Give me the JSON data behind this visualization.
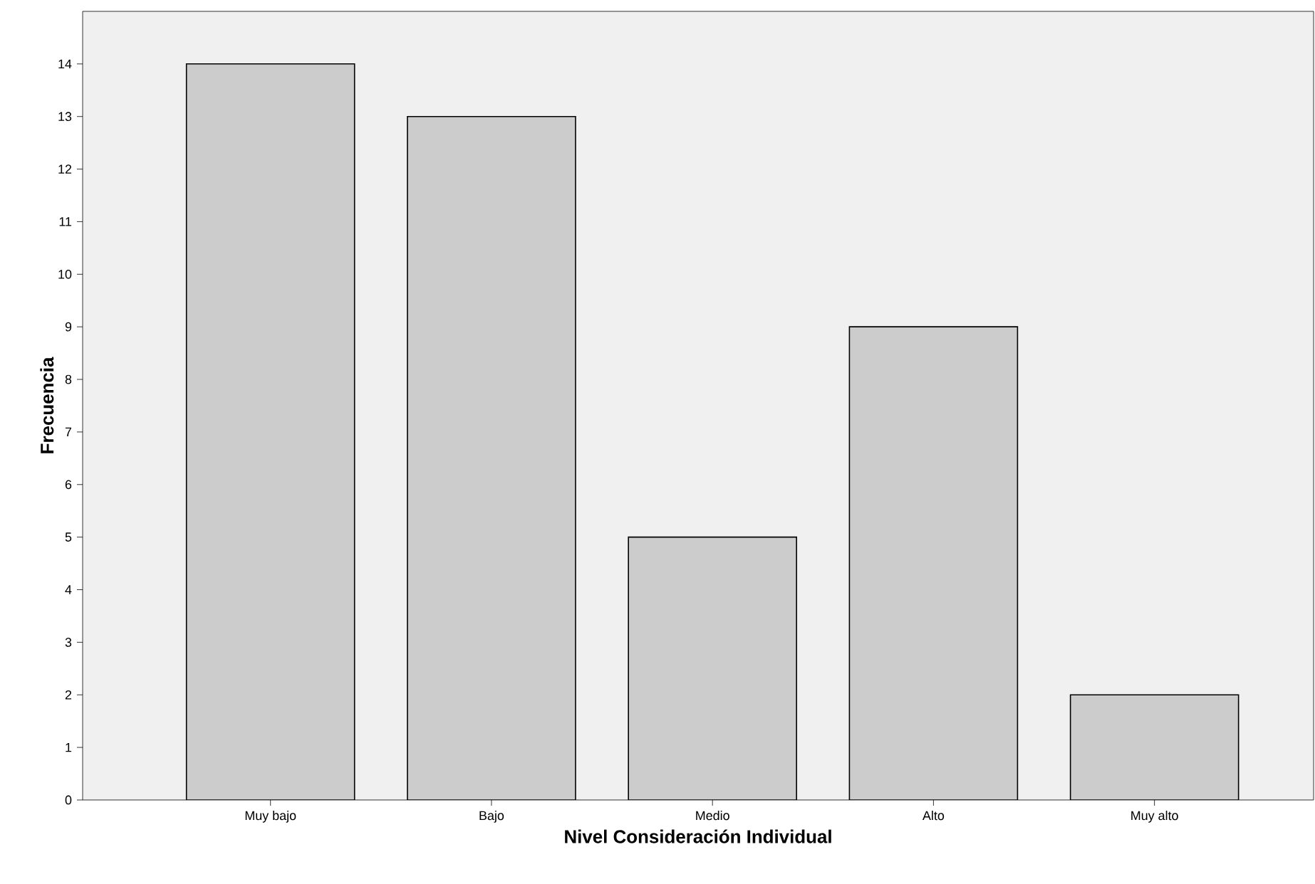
{
  "chart_data": {
    "type": "bar",
    "xlabel": "Nivel Consideración Individual",
    "ylabel": "Frecuencia",
    "categories": [
      "Muy bajo",
      "Bajo",
      "Medio",
      "Alto",
      "Muy alto"
    ],
    "values": [
      14,
      13,
      5,
      9,
      2
    ],
    "color": "#cccccc",
    "ylim": [
      0,
      15
    ],
    "yticks": [
      0,
      1,
      2,
      3,
      4,
      5,
      6,
      7,
      8,
      9,
      10,
      11,
      12,
      13,
      14
    ]
  }
}
